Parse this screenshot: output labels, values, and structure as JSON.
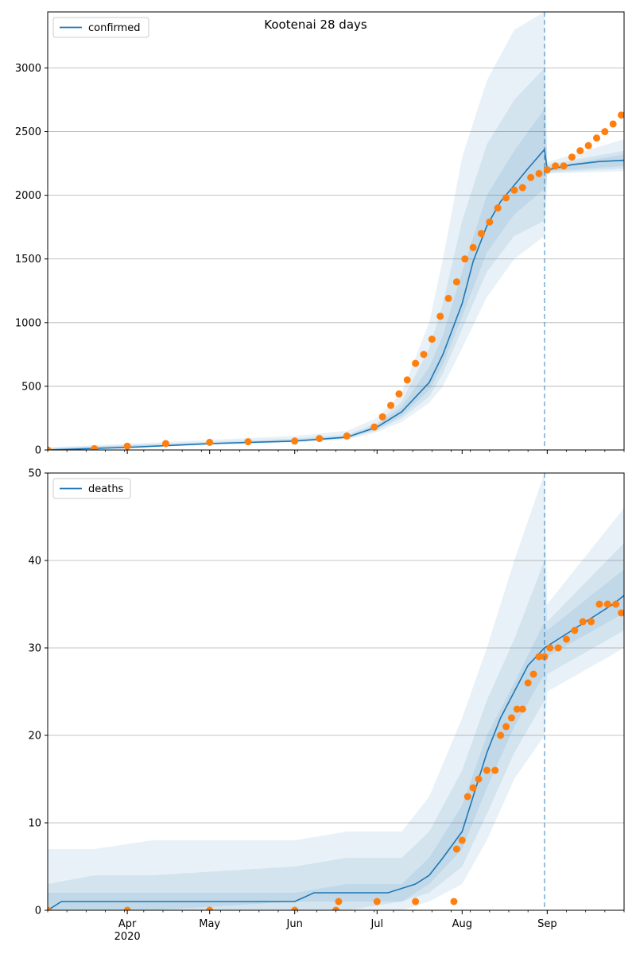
{
  "figure": {
    "title": "Kootenai 28 days"
  },
  "colors": {
    "line": "#1f77b4",
    "band": "#1f77b4",
    "observed": "#ff7f0e",
    "grid": "#b0b0b0",
    "axis": "#000000",
    "cutoff": "#1f77b4"
  },
  "chart_data": [
    {
      "type": "line",
      "title": "Kootenai 28 days",
      "legend": {
        "entries": [
          "confirmed"
        ],
        "placement": "top-left"
      },
      "xlabel": "",
      "ylabel": "",
      "xlim": [
        "2020-03-03",
        "2020-09-29"
      ],
      "ylim": [
        0,
        3440
      ],
      "yticks": [
        0,
        500,
        1000,
        1500,
        2000,
        2500,
        3000
      ],
      "grid": "horizontal",
      "forecast_start": "2020-08-31",
      "series": [
        {
          "name": "confirmed",
          "kind": "model_median",
          "x": [
            "2020-03-03",
            "2020-04-01",
            "2020-05-01",
            "2020-06-01",
            "2020-06-20",
            "2020-07-01",
            "2020-07-10",
            "2020-07-20",
            "2020-07-25",
            "2020-08-01",
            "2020-08-05",
            "2020-08-10",
            "2020-08-15",
            "2020-08-20",
            "2020-08-25",
            "2020-08-31",
            "2020-09-01",
            "2020-09-10",
            "2020-09-20",
            "2020-09-29"
          ],
          "y": [
            0,
            20,
            50,
            70,
            100,
            180,
            300,
            530,
            750,
            1150,
            1480,
            1760,
            1950,
            2080,
            2210,
            2360,
            2200,
            2240,
            2265,
            2275
          ]
        },
        {
          "name": "observed",
          "kind": "points",
          "x": [
            "2020-03-03",
            "2020-03-20",
            "2020-04-01",
            "2020-04-15",
            "2020-05-01",
            "2020-05-15",
            "2020-06-01",
            "2020-06-10",
            "2020-06-20",
            "2020-06-30",
            "2020-07-03",
            "2020-07-06",
            "2020-07-09",
            "2020-07-12",
            "2020-07-15",
            "2020-07-18",
            "2020-07-21",
            "2020-07-24",
            "2020-07-27",
            "2020-07-30",
            "2020-08-02",
            "2020-08-05",
            "2020-08-08",
            "2020-08-11",
            "2020-08-14",
            "2020-08-17",
            "2020-08-20",
            "2020-08-23",
            "2020-08-26",
            "2020-08-29",
            "2020-09-01",
            "2020-09-04",
            "2020-09-07",
            "2020-09-10",
            "2020-09-13",
            "2020-09-16",
            "2020-09-19",
            "2020-09-22",
            "2020-09-25",
            "2020-09-28"
          ],
          "y": [
            0,
            10,
            30,
            50,
            60,
            65,
            70,
            90,
            110,
            180,
            260,
            350,
            440,
            550,
            680,
            750,
            870,
            1050,
            1190,
            1320,
            1500,
            1590,
            1700,
            1790,
            1900,
            1980,
            2040,
            2060,
            2140,
            2170,
            2200,
            2230,
            2230,
            2300,
            2350,
            2390,
            2450,
            2500,
            2560,
            2630
          ]
        }
      ],
      "bands": [
        {
          "name": "band-outer",
          "x": [
            "2020-03-03",
            "2020-06-01",
            "2020-06-20",
            "2020-07-01",
            "2020-07-10",
            "2020-07-20",
            "2020-07-25",
            "2020-08-01",
            "2020-08-10",
            "2020-08-20",
            "2020-08-31",
            "2020-09-01",
            "2020-09-29"
          ],
          "lo": [
            0,
            60,
            80,
            140,
            220,
            370,
            500,
            800,
            1200,
            1500,
            1680,
            2170,
            2190
          ],
          "hi": [
            20,
            110,
            150,
            250,
            450,
            1000,
            1500,
            2300,
            2900,
            3300,
            3440,
            2260,
            2440
          ]
        },
        {
          "name": "band-middle",
          "x": [
            "2020-03-03",
            "2020-06-01",
            "2020-06-20",
            "2020-07-01",
            "2020-07-10",
            "2020-07-20",
            "2020-07-25",
            "2020-08-01",
            "2020-08-10",
            "2020-08-20",
            "2020-08-31",
            "2020-09-01",
            "2020-09-29"
          ],
          "lo": [
            0,
            65,
            90,
            155,
            250,
            420,
            600,
            950,
            1400,
            1680,
            1800,
            2180,
            2210
          ],
          "hi": [
            15,
            90,
            120,
            210,
            380,
            800,
            1150,
            1800,
            2400,
            2750,
            3000,
            2240,
            2350
          ]
        },
        {
          "name": "band-inner",
          "x": [
            "2020-03-03",
            "2020-06-01",
            "2020-06-20",
            "2020-07-01",
            "2020-07-10",
            "2020-07-20",
            "2020-07-25",
            "2020-08-01",
            "2020-08-10",
            "2020-08-20",
            "2020-08-31",
            "2020-09-01",
            "2020-09-29"
          ],
          "lo": [
            0,
            68,
            95,
            165,
            270,
            470,
            670,
            1050,
            1550,
            1850,
            2050,
            2190,
            2230
          ],
          "hi": [
            12,
            80,
            110,
            195,
            340,
            650,
            900,
            1400,
            2000,
            2350,
            2680,
            2220,
            2320
          ]
        }
      ]
    },
    {
      "type": "line",
      "title": "",
      "legend": {
        "entries": [
          "deaths"
        ],
        "placement": "top-left"
      },
      "xlabel": "",
      "ylabel": "",
      "xlim": [
        "2020-03-03",
        "2020-09-29"
      ],
      "ylim": [
        0,
        50
      ],
      "yticks": [
        0,
        10,
        20,
        30,
        40,
        50
      ],
      "xticks": [
        "Apr",
        "May",
        "Jun",
        "Jul",
        "Aug",
        "Sep"
      ],
      "xtick_dates": [
        "2020-04-01",
        "2020-05-01",
        "2020-06-01",
        "2020-07-01",
        "2020-08-01",
        "2020-09-01"
      ],
      "year_label": "2020",
      "grid": "horizontal",
      "forecast_start": "2020-08-31",
      "series": [
        {
          "name": "deaths",
          "kind": "model_median",
          "x": [
            "2020-03-03",
            "2020-03-08",
            "2020-06-01",
            "2020-06-08",
            "2020-07-05",
            "2020-07-15",
            "2020-07-20",
            "2020-07-25",
            "2020-08-01",
            "2020-08-05",
            "2020-08-10",
            "2020-08-15",
            "2020-08-20",
            "2020-08-25",
            "2020-08-31",
            "2020-09-05",
            "2020-09-10",
            "2020-09-15",
            "2020-09-20",
            "2020-09-25",
            "2020-09-29"
          ],
          "y": [
            0,
            1,
            1,
            2,
            2,
            3,
            4,
            6,
            9,
            13,
            18,
            22,
            25,
            28,
            30,
            31,
            32,
            33,
            34,
            35,
            36
          ]
        },
        {
          "name": "observed",
          "kind": "points",
          "x": [
            "2020-03-03",
            "2020-04-01",
            "2020-05-01",
            "2020-06-01",
            "2020-06-16",
            "2020-06-17",
            "2020-07-01",
            "2020-07-15",
            "2020-07-29",
            "2020-07-30",
            "2020-08-01",
            "2020-08-03",
            "2020-08-05",
            "2020-08-07",
            "2020-08-10",
            "2020-08-13",
            "2020-08-15",
            "2020-08-17",
            "2020-08-19",
            "2020-08-21",
            "2020-08-23",
            "2020-08-25",
            "2020-08-27",
            "2020-08-29",
            "2020-08-31",
            "2020-09-02",
            "2020-09-05",
            "2020-09-08",
            "2020-09-11",
            "2020-09-14",
            "2020-09-17",
            "2020-09-20",
            "2020-09-23",
            "2020-09-26",
            "2020-09-28"
          ],
          "y": [
            0,
            0,
            0,
            0,
            0,
            1,
            1,
            1,
            1,
            7,
            8,
            13,
            14,
            15,
            16,
            16,
            20,
            21,
            22,
            23,
            23,
            26,
            27,
            29,
            29,
            30,
            30,
            31,
            32,
            33,
            33,
            35,
            35,
            35,
            34
          ]
        }
      ],
      "bands": [
        {
          "name": "band-outer",
          "x": [
            "2020-03-03",
            "2020-03-20",
            "2020-04-10",
            "2020-06-01",
            "2020-06-20",
            "2020-07-10",
            "2020-07-20",
            "2020-08-01",
            "2020-08-10",
            "2020-08-20",
            "2020-08-31",
            "2020-09-01",
            "2020-09-29"
          ],
          "lo": [
            0,
            0,
            0,
            0,
            0,
            0,
            1,
            3,
            8,
            15,
            20,
            25,
            30
          ],
          "hi": [
            7,
            7,
            8,
            8,
            9,
            9,
            13,
            22,
            30,
            40,
            50,
            35,
            46
          ]
        },
        {
          "name": "band-middle",
          "x": [
            "2020-03-03",
            "2020-03-20",
            "2020-04-10",
            "2020-06-01",
            "2020-06-20",
            "2020-07-10",
            "2020-07-20",
            "2020-08-01",
            "2020-08-10",
            "2020-08-20",
            "2020-08-31",
            "2020-09-01",
            "2020-09-29"
          ],
          "lo": [
            0,
            0,
            0,
            0,
            0,
            1,
            2,
            5,
            11,
            18,
            24,
            27,
            32
          ],
          "hi": [
            3,
            4,
            4,
            5,
            6,
            6,
            9,
            16,
            24,
            31,
            40,
            33,
            42
          ]
        },
        {
          "name": "band-inner",
          "x": [
            "2020-03-03",
            "2020-03-20",
            "2020-04-10",
            "2020-06-01",
            "2020-06-20",
            "2020-07-10",
            "2020-07-20",
            "2020-08-01",
            "2020-08-10",
            "2020-08-20",
            "2020-08-31",
            "2020-09-01",
            "2020-09-29"
          ],
          "lo": [
            0,
            0,
            0,
            1,
            1,
            1,
            3,
            7,
            14,
            21,
            27,
            29,
            34
          ],
          "hi": [
            2,
            2,
            2,
            2,
            3,
            3,
            6,
            12,
            20,
            26,
            33,
            32,
            39
          ]
        }
      ]
    }
  ]
}
